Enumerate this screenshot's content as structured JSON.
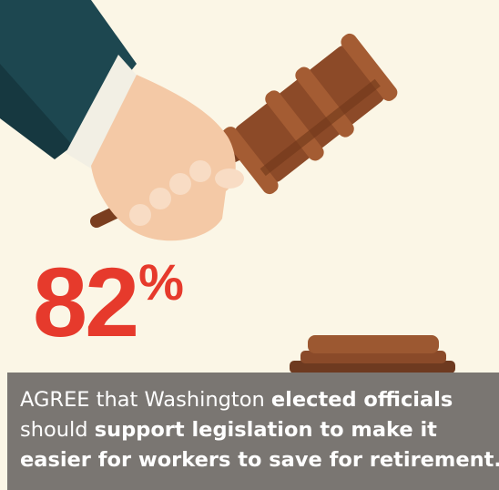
{
  "stat": {
    "number": "82",
    "unit": "%"
  },
  "caption": {
    "lines": [
      [
        {
          "text": "AGREE that Washington ",
          "bold": false
        },
        {
          "text": "elected officials",
          "bold": true
        }
      ],
      [
        {
          "text": "should ",
          "bold": false
        },
        {
          "text": "support legislation to make it",
          "bold": true
        }
      ],
      [
        {
          "text": "easier for workers to save for retirement.",
          "bold": true
        }
      ]
    ]
  }
}
